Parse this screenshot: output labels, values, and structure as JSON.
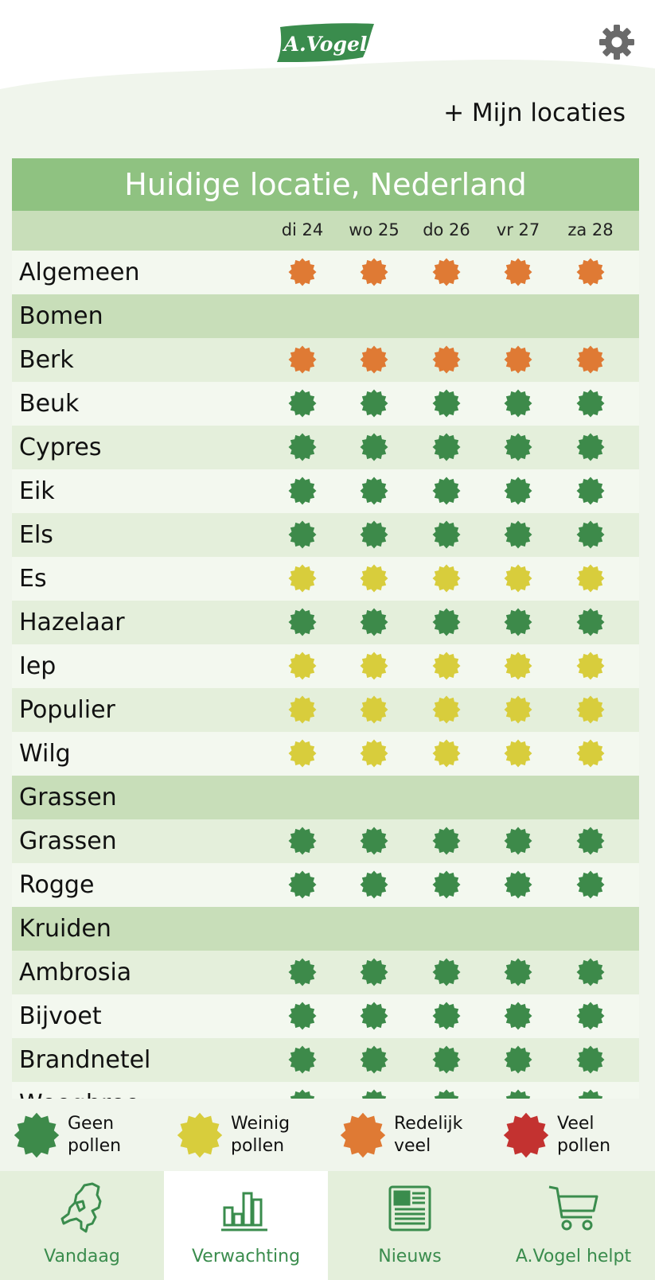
{
  "header": {
    "logo_text": "A.Vogel",
    "my_locations": "+ Mijn locaties"
  },
  "colors": {
    "geen": "#3d8a4a",
    "weinig": "#d8cd3c",
    "redelijk": "#df7a34",
    "veel": "#c33230",
    "brand_green": "#3a8c4d"
  },
  "table": {
    "title": "Huidige locatie, Nederland",
    "days": [
      "di 24",
      "wo 25",
      "do 26",
      "vr 27",
      "za 28"
    ],
    "rows": [
      {
        "type": "item",
        "label": "Algemeen",
        "levels": [
          "redelijk",
          "redelijk",
          "redelijk",
          "redelijk",
          "redelijk"
        ]
      },
      {
        "type": "category",
        "label": "Bomen"
      },
      {
        "type": "item",
        "label": "Berk",
        "levels": [
          "redelijk",
          "redelijk",
          "redelijk",
          "redelijk",
          "redelijk"
        ]
      },
      {
        "type": "item",
        "label": "Beuk",
        "levels": [
          "geen",
          "geen",
          "geen",
          "geen",
          "geen"
        ]
      },
      {
        "type": "item",
        "label": "Cypres",
        "levels": [
          "geen",
          "geen",
          "geen",
          "geen",
          "geen"
        ]
      },
      {
        "type": "item",
        "label": "Eik",
        "levels": [
          "geen",
          "geen",
          "geen",
          "geen",
          "geen"
        ]
      },
      {
        "type": "item",
        "label": "Els",
        "levels": [
          "geen",
          "geen",
          "geen",
          "geen",
          "geen"
        ]
      },
      {
        "type": "item",
        "label": "Es",
        "levels": [
          "weinig",
          "weinig",
          "weinig",
          "weinig",
          "weinig"
        ]
      },
      {
        "type": "item",
        "label": "Hazelaar",
        "levels": [
          "geen",
          "geen",
          "geen",
          "geen",
          "geen"
        ]
      },
      {
        "type": "item",
        "label": "Iep",
        "levels": [
          "weinig",
          "weinig",
          "weinig",
          "weinig",
          "weinig"
        ]
      },
      {
        "type": "item",
        "label": "Populier",
        "levels": [
          "weinig",
          "weinig",
          "weinig",
          "weinig",
          "weinig"
        ]
      },
      {
        "type": "item",
        "label": "Wilg",
        "levels": [
          "weinig",
          "weinig",
          "weinig",
          "weinig",
          "weinig"
        ]
      },
      {
        "type": "category",
        "label": "Grassen"
      },
      {
        "type": "item",
        "label": "Grassen",
        "levels": [
          "geen",
          "geen",
          "geen",
          "geen",
          "geen"
        ]
      },
      {
        "type": "item",
        "label": "Rogge",
        "levels": [
          "geen",
          "geen",
          "geen",
          "geen",
          "geen"
        ]
      },
      {
        "type": "category",
        "label": "Kruiden"
      },
      {
        "type": "item",
        "label": "Ambrosia",
        "levels": [
          "geen",
          "geen",
          "geen",
          "geen",
          "geen"
        ]
      },
      {
        "type": "item",
        "label": "Bijvoet",
        "levels": [
          "geen",
          "geen",
          "geen",
          "geen",
          "geen"
        ]
      },
      {
        "type": "item",
        "label": "Brandnetel",
        "levels": [
          "geen",
          "geen",
          "geen",
          "geen",
          "geen"
        ]
      },
      {
        "type": "item",
        "label": "Weegbree",
        "levels": [
          "geen",
          "geen",
          "geen",
          "geen",
          "geen"
        ]
      }
    ]
  },
  "legend": [
    {
      "key": "geen",
      "line1": "Geen",
      "line2": "pollen"
    },
    {
      "key": "weinig",
      "line1": "Weinig",
      "line2": "pollen"
    },
    {
      "key": "redelijk",
      "line1": "Redelijk",
      "line2": "veel"
    },
    {
      "key": "veel",
      "line1": "Veel",
      "line2": "pollen"
    }
  ],
  "nav": {
    "tabs": [
      {
        "label": "Vandaag",
        "icon": "netherlands-map-icon",
        "active": false
      },
      {
        "label": "Verwachting",
        "icon": "bar-chart-icon",
        "active": true
      },
      {
        "label": "Nieuws",
        "icon": "newspaper-icon",
        "active": false
      },
      {
        "label": "A.Vogel helpt",
        "icon": "shopping-cart-icon",
        "active": false
      }
    ]
  }
}
